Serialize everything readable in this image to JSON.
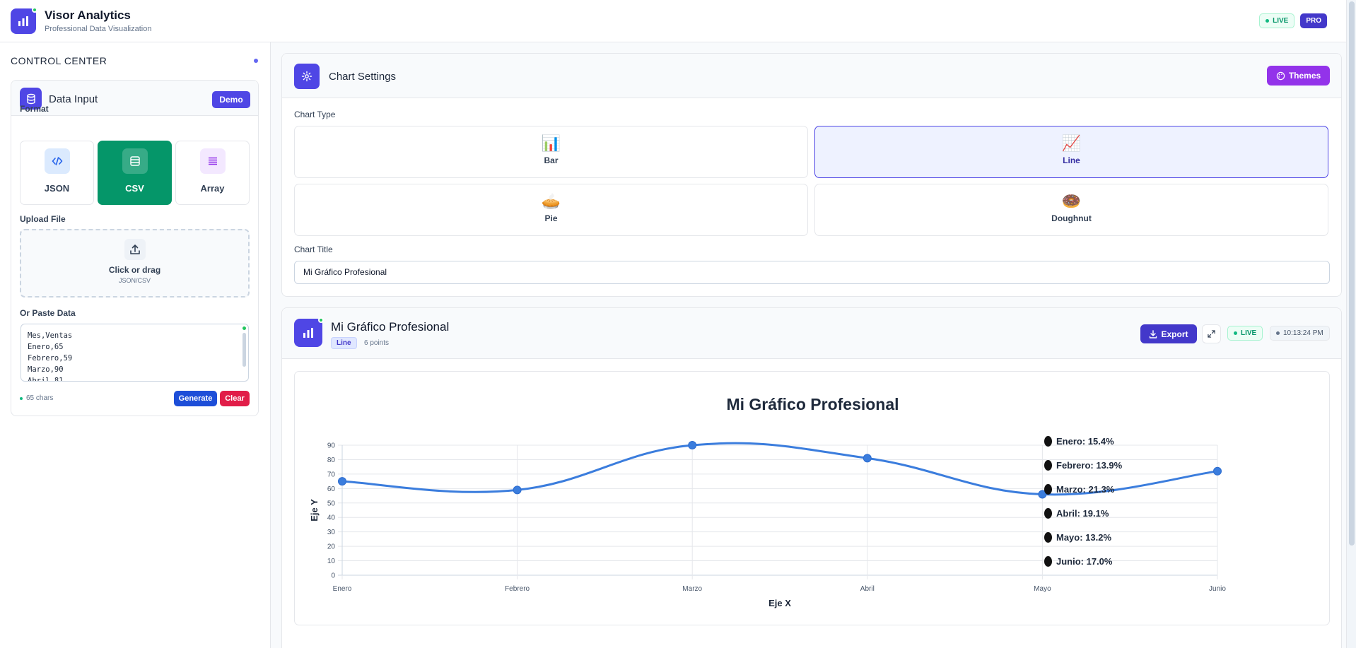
{
  "header": {
    "title": "Visor Analytics",
    "subtitle": "Professional Data Visualization",
    "live_badge": "LIVE",
    "pro_badge": "PRO"
  },
  "sidebar": {
    "title": "CONTROL CENTER",
    "data_input": {
      "title": "Data Input",
      "demo_label": "Demo",
      "format_label": "Format",
      "formats": [
        {
          "label": "JSON",
          "icon": "code-icon",
          "color": "#2563eb"
        },
        {
          "label": "CSV",
          "icon": "table-icon",
          "color": "#059669"
        },
        {
          "label": "Array",
          "icon": "list-icon",
          "color": "#9333ea"
        }
      ],
      "upload_label": "Upload File",
      "upload_text": "Click or drag",
      "upload_hint": "JSON/CSV",
      "paste_label": "Or Paste Data",
      "paste_value": "Mes,Ventas\nEnero,65\nFebrero,59\nMarzo,90\nAbril,81",
      "chars": "65 chars",
      "generate_label": "Generate",
      "clear_label": "Clear"
    }
  },
  "settings": {
    "title": "Chart Settings",
    "themes_label": "Themes",
    "chart_type_label": "Chart Type",
    "chart_types": [
      {
        "label": "Bar",
        "emoji": "📊"
      },
      {
        "label": "Line",
        "emoji": "📈"
      },
      {
        "label": "Pie",
        "emoji": "🥧"
      },
      {
        "label": "Doughnut",
        "emoji": "🍩"
      }
    ],
    "selected_type": "Line",
    "chart_title_label": "Chart Title",
    "chart_title_value": "Mi Gráfico Profesional"
  },
  "chart_panel": {
    "title": "Mi Gráfico Profesional",
    "type_badge": "Line",
    "points": "6 points",
    "export_label": "Export",
    "live_badge": "LIVE",
    "timestamp": "10:13:24 PM"
  },
  "chart_data": {
    "type": "line",
    "title": "Mi Gráfico Profesional",
    "xlabel": "Eje X",
    "ylabel": "Eje Y",
    "categories": [
      "Enero",
      "Febrero",
      "Marzo",
      "Abril",
      "Mayo",
      "Junio"
    ],
    "series": [
      {
        "values": [
          65,
          59,
          90,
          81,
          56,
          72
        ]
      }
    ],
    "ylim": [
      0,
      90
    ],
    "yticks": [
      "0",
      "10",
      "20",
      "30",
      "40",
      "50",
      "60",
      "70",
      "80",
      "90"
    ],
    "line_color": "#3b7ddd",
    "grid": true,
    "legend_position": "right",
    "legend": [
      "Enero: 15.4%",
      "Febrero: 13.9%",
      "Marzo: 21.3%",
      "Abril: 19.1%",
      "Mayo: 13.2%",
      "Junio: 17.0%"
    ]
  }
}
